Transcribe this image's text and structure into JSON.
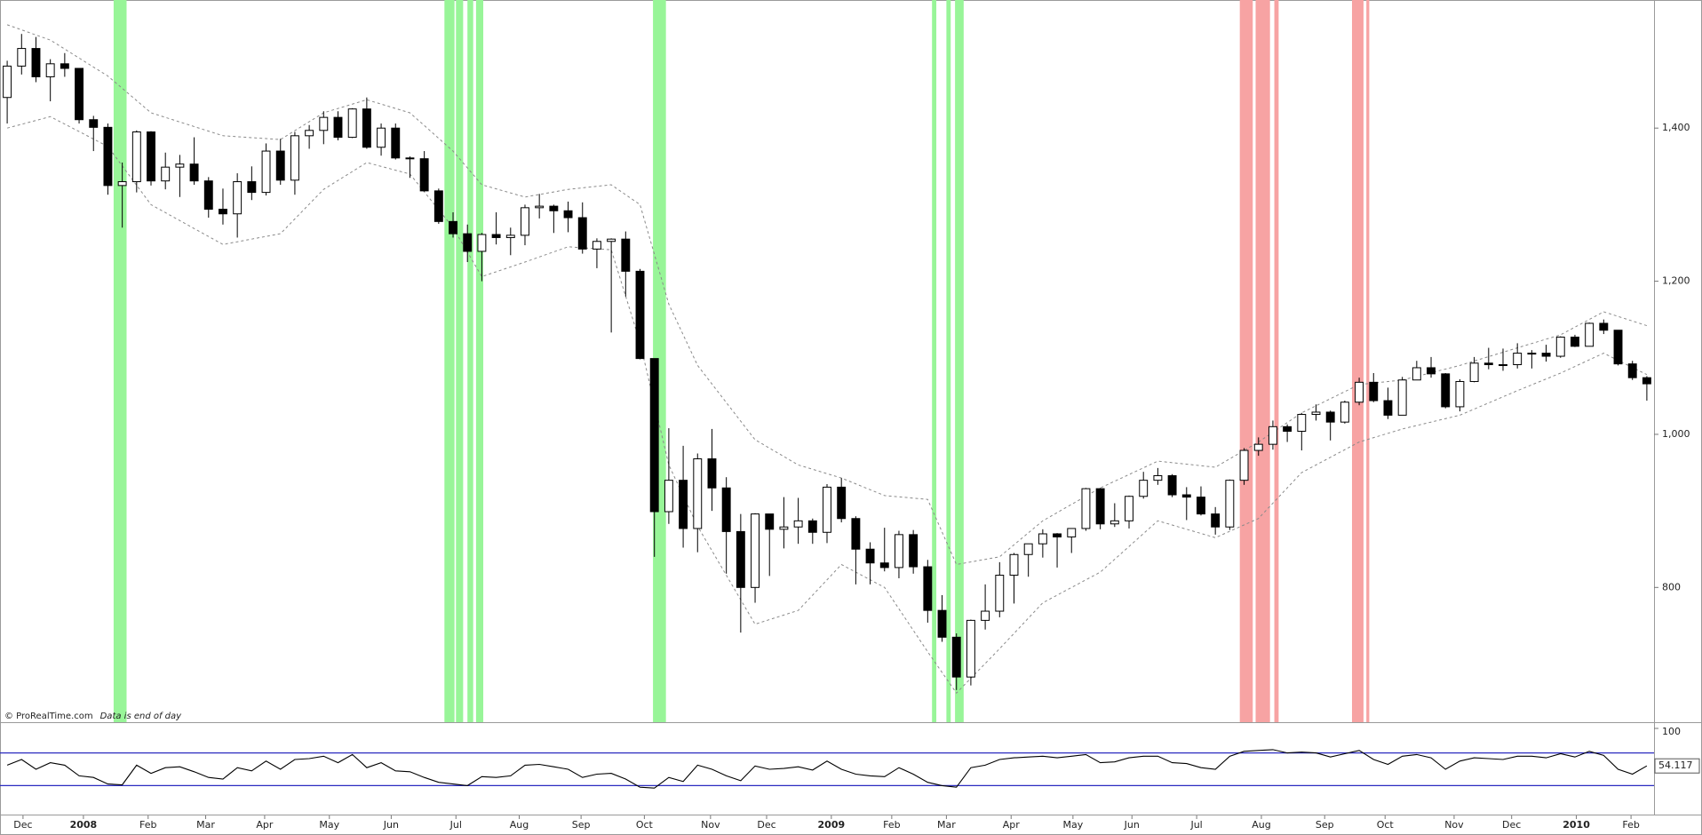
{
  "chart_data": [
    {
      "type": "candlestick",
      "source": "© ProRealTime.com",
      "note": "Data is end of day",
      "xlim": [
        -0.5,
        114.5
      ],
      "ylim": [
        624,
        1565
      ],
      "yticks": [
        800,
        {
          "value": 1000,
          "label": "1,000"
        },
        {
          "value": 1200,
          "label": "1,200"
        },
        {
          "value": 1400,
          "label": "1,400"
        }
      ],
      "xticks": [
        {
          "value": 1.1,
          "label": "Dec"
        },
        {
          "value": 5.3,
          "label": "2008"
        },
        {
          "value": 9.8,
          "label": "Feb"
        },
        {
          "value": 13.8,
          "label": "Mar"
        },
        {
          "value": 17.9,
          "label": "Apr"
        },
        {
          "value": 22.4,
          "label": "May"
        },
        {
          "value": 26.7,
          "label": "Jun"
        },
        {
          "value": 31.2,
          "label": "Jul"
        },
        {
          "value": 35.6,
          "label": "Aug"
        },
        {
          "value": 39.9,
          "label": "Sep"
        },
        {
          "value": 44.3,
          "label": "Oct"
        },
        {
          "value": 48.9,
          "label": "Nov"
        },
        {
          "value": 52.8,
          "label": "Dec"
        },
        {
          "value": 57.3,
          "label": "2009"
        },
        {
          "value": 61.5,
          "label": "Feb"
        },
        {
          "value": 65.3,
          "label": "Mar"
        },
        {
          "value": 69.8,
          "label": "Apr"
        },
        {
          "value": 74.1,
          "label": "May"
        },
        {
          "value": 78.2,
          "label": "Jun"
        },
        {
          "value": 82.7,
          "label": "Jul"
        },
        {
          "value": 87.2,
          "label": "Aug"
        },
        {
          "value": 91.6,
          "label": "Sep"
        },
        {
          "value": 95.8,
          "label": "Oct"
        },
        {
          "value": 100.6,
          "label": "Nov"
        },
        {
          "value": 104.6,
          "label": "Dec"
        },
        {
          "value": 109.1,
          "label": "2010"
        },
        {
          "value": 112.9,
          "label": "Feb"
        }
      ],
      "up_color": "#ffffff",
      "down_color": "#000000",
      "open": [
        1440,
        1481,
        1504,
        1467,
        1484,
        1478,
        1411,
        1401,
        1325,
        1330,
        1395,
        1331,
        1349,
        1353,
        1331,
        1294,
        1288,
        1330,
        1316,
        1370,
        1332,
        1390,
        1397,
        1414,
        1388,
        1425,
        1375,
        1400,
        1361,
        1360,
        1318,
        1278,
        1262,
        1239,
        1261,
        1257,
        1260,
        1296,
        1298,
        1292,
        1283,
        1242,
        1252,
        1255,
        1213,
        1099,
        899,
        940,
        877,
        968,
        930,
        873,
        800,
        896,
        876,
        879,
        887,
        872,
        931,
        890,
        850,
        832,
        826,
        869,
        827,
        770,
        735,
        683,
        757,
        769,
        816,
        843,
        857,
        870,
        866,
        877,
        929,
        883,
        887,
        919,
        940,
        946,
        921,
        918,
        896,
        879,
        940,
        979,
        987,
        1010,
        1004,
        1026,
        1029,
        1016,
        1042,
        1068,
        1044,
        1025,
        1071,
        1087,
        1079,
        1036,
        1069,
        1093,
        1091,
        1091,
        1106,
        1106,
        1102,
        1127,
        1115,
        1145,
        1136,
        1092,
        1074
      ],
      "high": [
        1488,
        1523,
        1519,
        1490,
        1498,
        1478,
        1416,
        1406,
        1355,
        1397,
        1396,
        1368,
        1365,
        1388,
        1336,
        1321,
        1341,
        1350,
        1380,
        1386,
        1395,
        1404,
        1422,
        1422,
        1426,
        1440,
        1406,
        1406,
        1363,
        1370,
        1321,
        1290,
        1274,
        1263,
        1290,
        1270,
        1300,
        1314,
        1300,
        1304,
        1303,
        1256,
        1256,
        1265,
        1216,
        1099,
        1008,
        985,
        975,
        1007,
        944,
        896,
        897,
        896,
        918,
        917,
        890,
        935,
        943,
        893,
        859,
        878,
        874,
        875,
        836,
        790,
        740,
        758,
        804,
        833,
        845,
        857,
        876,
        871,
        877,
        930,
        930,
        910,
        920,
        951,
        956,
        948,
        931,
        932,
        905,
        941,
        982,
        996,
        1018,
        1013,
        1028,
        1039,
        1031,
        1044,
        1074,
        1080,
        1061,
        1075,
        1096,
        1101,
        1080,
        1072,
        1101,
        1113,
        1112,
        1119,
        1110,
        1117,
        1128,
        1130,
        1146,
        1150,
        1136,
        1096,
        1076
      ],
      "low": [
        1406,
        1470,
        1460,
        1435,
        1467,
        1406,
        1370,
        1313,
        1270,
        1316,
        1325,
        1320,
        1310,
        1326,
        1283,
        1274,
        1257,
        1306,
        1312,
        1326,
        1313,
        1373,
        1379,
        1384,
        1387,
        1373,
        1364,
        1359,
        1335,
        1317,
        1275,
        1257,
        1225,
        1200,
        1248,
        1234,
        1247,
        1282,
        1263,
        1264,
        1236,
        1217,
        1133,
        1180,
        1098,
        840,
        883,
        852,
        846,
        900,
        818,
        741,
        780,
        815,
        851,
        857,
        857,
        858,
        885,
        804,
        804,
        821,
        812,
        818,
        754,
        729,
        666,
        672,
        745,
        761,
        779,
        814,
        839,
        826,
        845,
        874,
        876,
        879,
        877,
        916,
        934,
        918,
        888,
        894,
        869,
        875,
        934,
        972,
        980,
        990,
        979,
        1018,
        992,
        1014,
        1038,
        1042,
        1020,
        1025,
        1071,
        1074,
        1034,
        1030,
        1068,
        1085,
        1083,
        1086,
        1086,
        1095,
        1100,
        1114,
        1115,
        1131,
        1090,
        1071,
        1044
      ],
      "close": [
        1481,
        1504,
        1467,
        1484,
        1478,
        1411,
        1401,
        1325,
        1330,
        1395,
        1331,
        1349,
        1353,
        1331,
        1294,
        1288,
        1330,
        1316,
        1370,
        1332,
        1390,
        1397,
        1414,
        1388,
        1425,
        1375,
        1400,
        1361,
        1360,
        1318,
        1278,
        1262,
        1239,
        1261,
        1257,
        1260,
        1296,
        1298,
        1292,
        1283,
        1242,
        1252,
        1255,
        1213,
        1099,
        899,
        940,
        877,
        968,
        930,
        873,
        800,
        896,
        876,
        879,
        887,
        872,
        931,
        890,
        850,
        832,
        826,
        869,
        827,
        770,
        735,
        683,
        757,
        769,
        816,
        843,
        857,
        870,
        866,
        877,
        929,
        883,
        887,
        919,
        940,
        946,
        921,
        918,
        896,
        879,
        940,
        979,
        987,
        1010,
        1004,
        1026,
        1029,
        1016,
        1042,
        1068,
        1044,
        1025,
        1071,
        1087,
        1079,
        1036,
        1069,
        1093,
        1091,
        1091,
        1106,
        1106,
        1102,
        1127,
        1115,
        1145,
        1136,
        1092,
        1074,
        1066
      ],
      "bands": {
        "color": "#8a8a8a",
        "x": [
          0,
          3,
          7,
          10,
          15,
          19,
          22,
          25,
          28,
          31,
          33,
          36,
          39,
          42,
          44,
          46,
          48,
          52,
          55,
          58,
          61,
          64,
          66,
          69,
          72,
          76,
          80,
          84,
          87,
          90,
          94,
          97,
          101,
          105,
          108,
          111,
          114
        ],
        "upper": [
          1535,
          1515,
          1468,
          1420,
          1390,
          1385,
          1420,
          1437,
          1420,
          1370,
          1326,
          1310,
          1320,
          1326,
          1300,
          1170,
          1090,
          993,
          960,
          943,
          920,
          915,
          830,
          840,
          887,
          930,
          965,
          957,
          990,
          1028,
          1065,
          1071,
          1090,
          1113,
          1130,
          1160,
          1142
        ],
        "lower": [
          1400,
          1415,
          1376,
          1300,
          1248,
          1262,
          1320,
          1355,
          1340,
          1270,
          1206,
          1225,
          1245,
          1241,
          1120,
          960,
          880,
          752,
          770,
          830,
          800,
          716,
          662,
          720,
          780,
          820,
          887,
          865,
          890,
          950,
          990,
          1007,
          1025,
          1057,
          1080,
          1106,
          1078
        ]
      },
      "highlights": [
        {
          "from": 7.4,
          "to": 8.3,
          "color": "#98f598"
        },
        {
          "from": 30.4,
          "to": 31.1,
          "color": "#98f598"
        },
        {
          "from": 31.2,
          "to": 31.7,
          "color": "#98f598"
        },
        {
          "from": 32.0,
          "to": 32.4,
          "color": "#98f598"
        },
        {
          "from": 32.6,
          "to": 33.1,
          "color": "#98f598"
        },
        {
          "from": 44.9,
          "to": 45.8,
          "color": "#98f598"
        },
        {
          "from": 64.3,
          "to": 64.6,
          "color": "#98f598"
        },
        {
          "from": 65.3,
          "to": 65.6,
          "color": "#98f598"
        },
        {
          "from": 65.9,
          "to": 66.5,
          "color": "#98f598"
        },
        {
          "from": 85.7,
          "to": 86.6,
          "color": "#f7a3a3"
        },
        {
          "from": 86.8,
          "to": 87.8,
          "color": "#f7a3a3"
        },
        {
          "from": 88.1,
          "to": 88.4,
          "color": "#f7a3a3"
        },
        {
          "from": 93.5,
          "to": 94.3,
          "color": "#f7a3a3"
        },
        {
          "from": 94.5,
          "to": 94.7,
          "color": "#f7a3a3"
        }
      ]
    },
    {
      "type": "line",
      "color": "#000000",
      "level_color": "#2b2bc0",
      "xlim": [
        -0.5,
        114.5
      ],
      "ylim": [
        0,
        100
      ],
      "yticks": [
        100
      ],
      "levels": [
        30,
        70
      ],
      "values": [
        55,
        62,
        50,
        58,
        55,
        42,
        40,
        32,
        31,
        55,
        45,
        52,
        53,
        47,
        40,
        38,
        52,
        48,
        60,
        50,
        62,
        63,
        66,
        58,
        68,
        52,
        58,
        48,
        47,
        40,
        34,
        32,
        30,
        41,
        40,
        42,
        55,
        56,
        53,
        50,
        40,
        44,
        45,
        38,
        28,
        27,
        40,
        35,
        55,
        50,
        42,
        36,
        54,
        50,
        51,
        53,
        49,
        60,
        50,
        44,
        42,
        41,
        52,
        44,
        34,
        30,
        28,
        52,
        55,
        62,
        64,
        65,
        66,
        64,
        66,
        68,
        58,
        59,
        64,
        66,
        66,
        58,
        57,
        52,
        50,
        66,
        72,
        73,
        74,
        70,
        71,
        70,
        65,
        69,
        73,
        62,
        56,
        66,
        68,
        64,
        50,
        60,
        64,
        63,
        62,
        66,
        66,
        64,
        69,
        65,
        72,
        67,
        50,
        44,
        54.117
      ]
    }
  ]
}
